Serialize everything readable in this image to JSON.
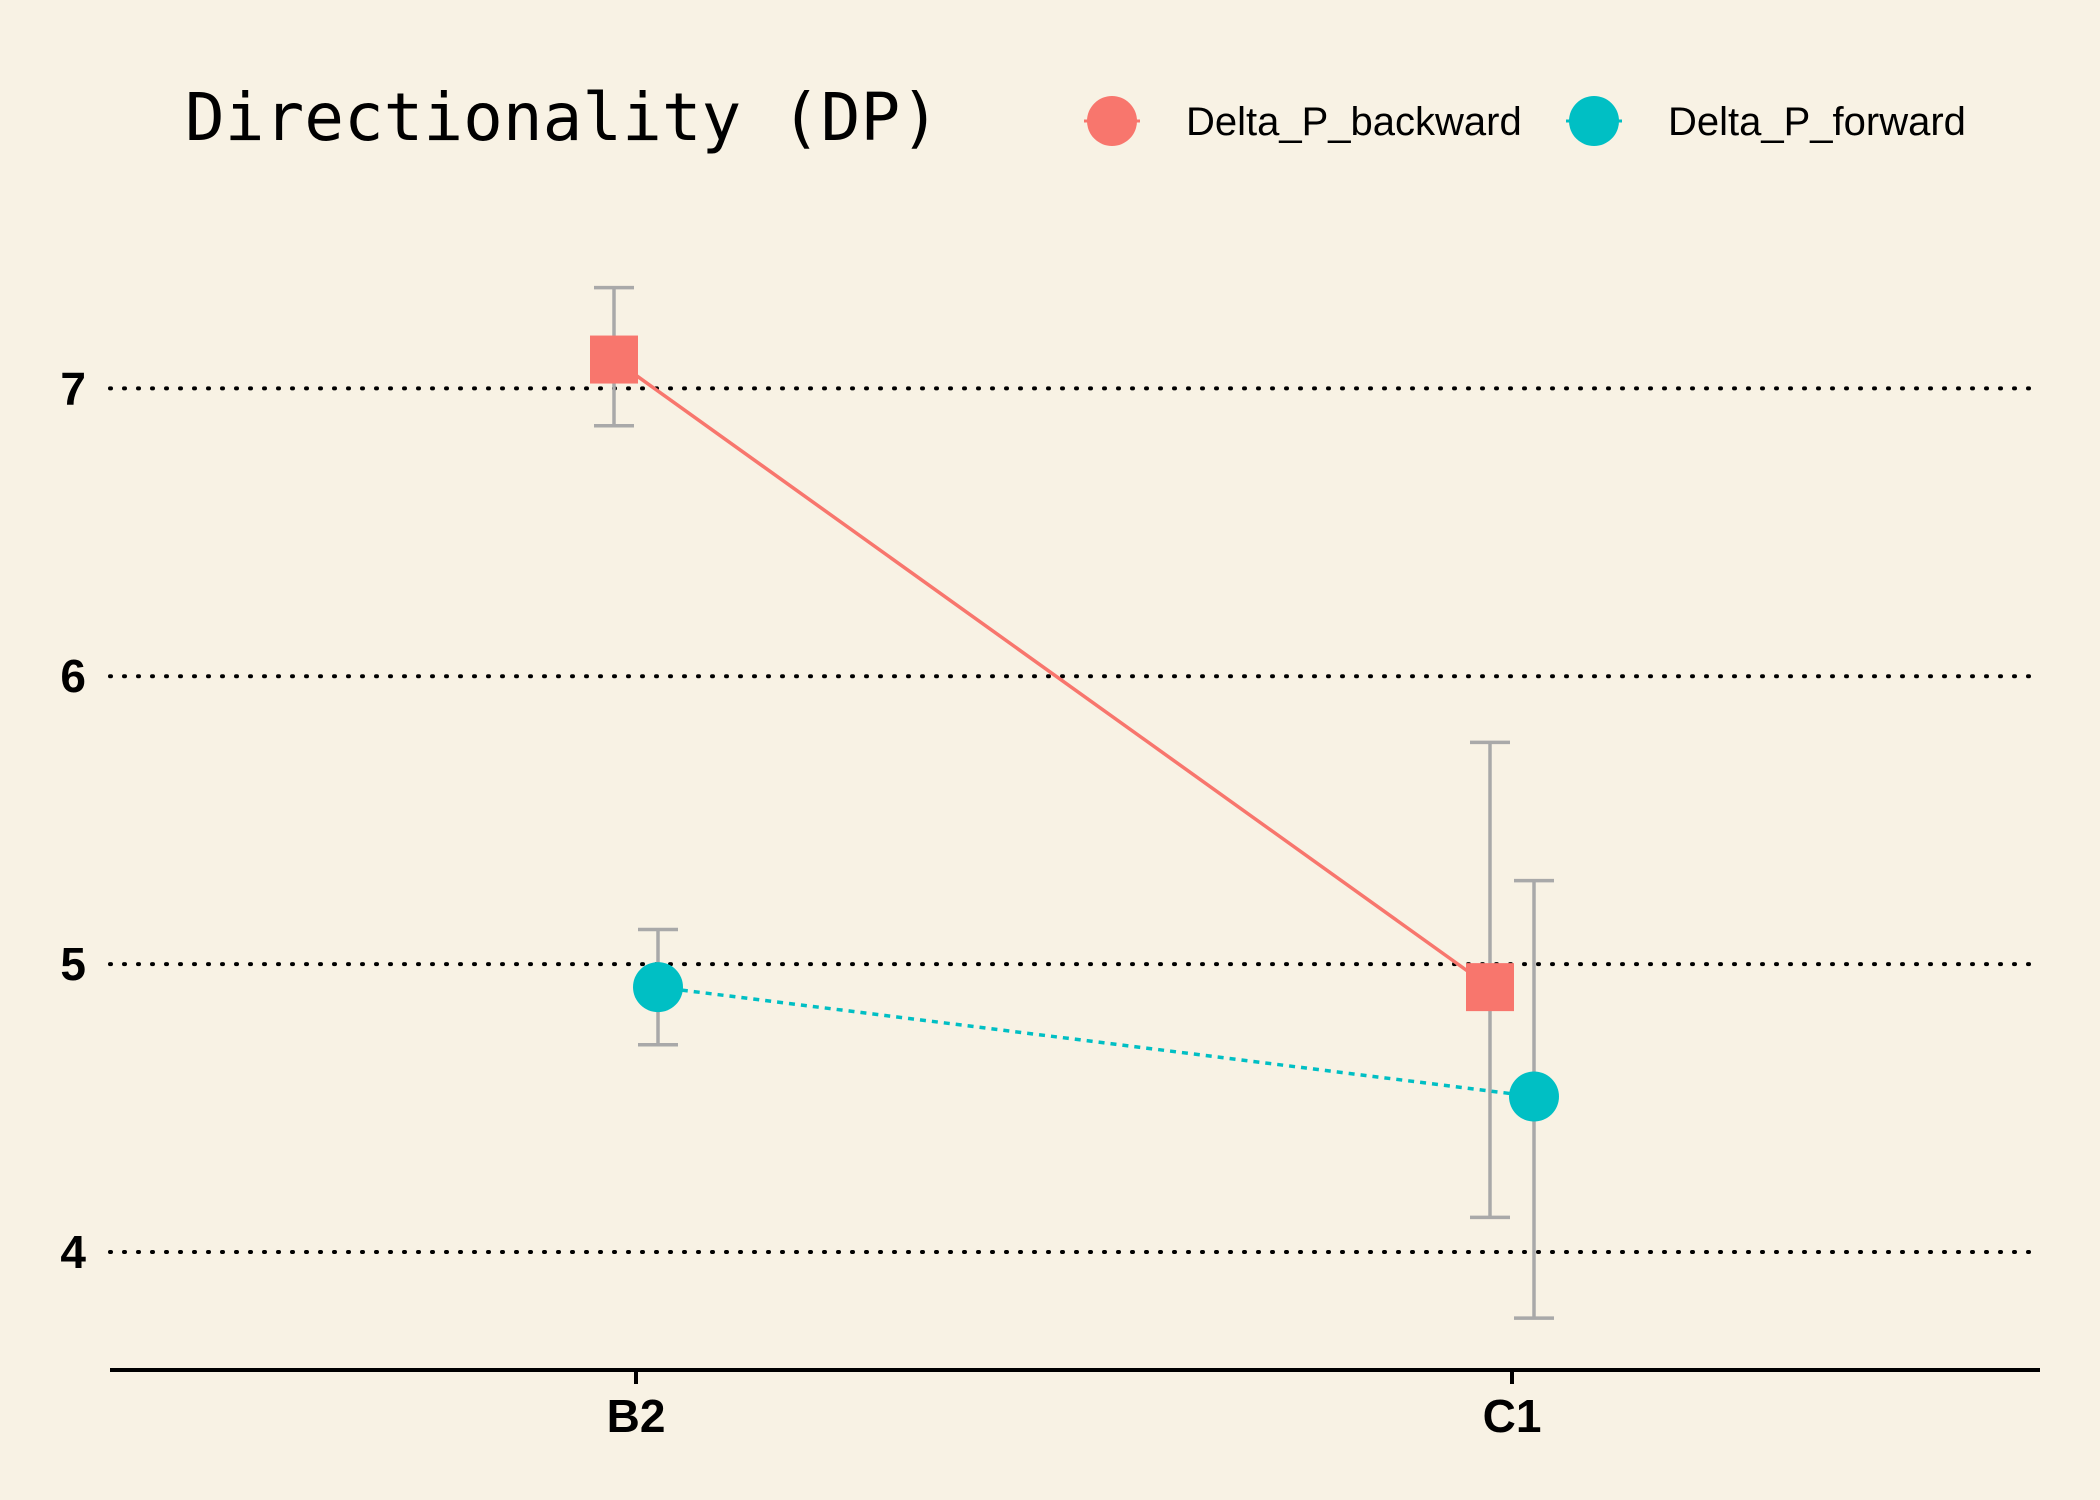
{
  "chart_data": {
    "type": "line",
    "title": "Directionality (DP)",
    "xlabel": "",
    "ylabel": "",
    "categories": [
      "B2",
      "C1"
    ],
    "ylim": [
      3.59,
      7.55
    ],
    "yticks": [
      4,
      5,
      6,
      7
    ],
    "grid": "horizontal dotted",
    "legend_position": "top",
    "series": [
      {
        "name": "Delta_P_backward",
        "color": "#F8766D",
        "marker": "square",
        "line_style": "solid",
        "values": [
          7.1,
          4.92
        ],
        "error_low": [
          6.87,
          4.12
        ],
        "error_high": [
          7.35,
          5.77
        ]
      },
      {
        "name": "Delta_P_forward",
        "color": "#00BFC4",
        "marker": "circle",
        "line_style": "dotted",
        "values": [
          4.92,
          4.54
        ],
        "error_low": [
          4.72,
          3.77
        ],
        "error_high": [
          5.12,
          5.29
        ]
      }
    ],
    "colors": {
      "background": "#F8F2E4",
      "grid": "#000000",
      "errorbar": "#A9A9A9",
      "axis": "#000000"
    }
  }
}
